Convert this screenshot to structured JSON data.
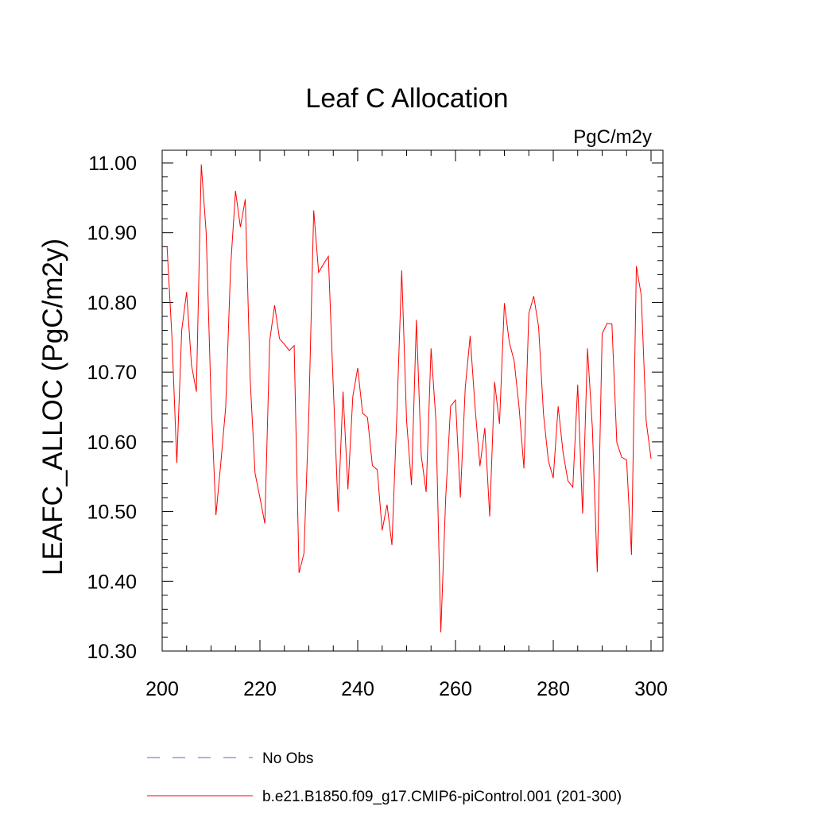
{
  "chart_data": {
    "type": "line",
    "title": "Leaf C Allocation",
    "units_label": "PgC/m2y",
    "ylabel": "LEAFC_ALLOC  (PgC/m2y)",
    "xlabel": "",
    "xlim": [
      200,
      300
    ],
    "ylim": [
      10.3,
      11.0
    ],
    "x_ticks": [
      "200",
      "220",
      "240",
      "260",
      "280",
      "300"
    ],
    "y_ticks": [
      "10.30",
      "10.40",
      "10.50",
      "10.60",
      "10.70",
      "10.80",
      "10.90",
      "11.00"
    ],
    "x_tick_values": [
      200,
      220,
      240,
      260,
      280,
      300
    ],
    "y_tick_values": [
      10.3,
      10.4,
      10.5,
      10.6,
      10.7,
      10.8,
      10.9,
      11.0
    ],
    "grid": false,
    "legend_position": "bottom",
    "series": [
      {
        "name": "b.e21.B1850.f09_g17.CMIP6-piControl.001 (201-300)",
        "color": "#ff0000",
        "style": "solid",
        "x": [
          201,
          202,
          203,
          204,
          205,
          206,
          207,
          208,
          209,
          210,
          211,
          212,
          213,
          214,
          215,
          216,
          217,
          218,
          219,
          220,
          221,
          222,
          223,
          224,
          225,
          226,
          227,
          228,
          229,
          230,
          231,
          232,
          233,
          234,
          235,
          236,
          237,
          238,
          239,
          240,
          241,
          242,
          243,
          244,
          245,
          246,
          247,
          248,
          249,
          250,
          251,
          252,
          253,
          254,
          255,
          256,
          257,
          258,
          259,
          260,
          261,
          262,
          263,
          264,
          265,
          266,
          267,
          268,
          269,
          270,
          271,
          272,
          273,
          274,
          275,
          276,
          277,
          278,
          279,
          280,
          281,
          282,
          283,
          284,
          285,
          286,
          287,
          288,
          289,
          290,
          291,
          292,
          293,
          294,
          295,
          296,
          297,
          298,
          299,
          300
        ],
        "values": [
          10.88,
          10.75,
          10.57,
          10.76,
          10.815,
          10.71,
          10.672,
          10.998,
          10.9,
          10.66,
          10.495,
          10.57,
          10.65,
          10.85,
          10.96,
          10.908,
          10.948,
          10.69,
          10.555,
          10.52,
          10.483,
          10.745,
          10.796,
          10.748,
          10.74,
          10.731,
          10.738,
          10.412,
          10.44,
          10.64,
          10.932,
          10.843,
          10.855,
          10.866,
          10.68,
          10.5,
          10.672,
          10.532,
          10.665,
          10.706,
          10.641,
          10.635,
          10.566,
          10.56,
          10.473,
          10.51,
          10.452,
          10.638,
          10.846,
          10.63,
          10.538,
          10.775,
          10.58,
          10.528,
          10.734,
          10.63,
          10.327,
          10.52,
          10.651,
          10.66,
          10.52,
          10.678,
          10.752,
          10.65,
          10.565,
          10.62,
          10.493,
          10.686,
          10.626,
          10.799,
          10.743,
          10.716,
          10.65,
          10.562,
          10.784,
          10.809,
          10.765,
          10.64,
          10.573,
          10.548,
          10.651,
          10.585,
          10.544,
          10.535,
          10.682,
          10.497,
          10.734,
          10.62,
          10.413,
          10.755,
          10.77,
          10.769,
          10.599,
          10.578,
          10.574,
          10.438,
          10.852,
          10.81,
          10.63,
          10.576
        ]
      },
      {
        "name": "No Obs",
        "color": "#6b5fc4",
        "style": "dashed",
        "x": [],
        "values": []
      }
    ]
  }
}
